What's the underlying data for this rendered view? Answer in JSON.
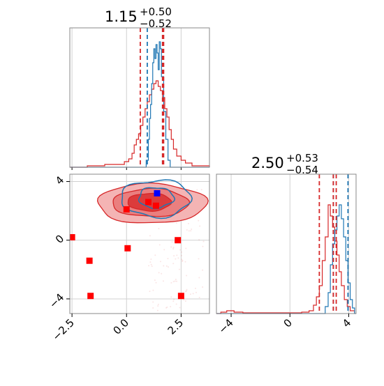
{
  "chart_data": [
    {
      "type": "histogram",
      "panel": "marginal-x",
      "title": {
        "main": "1.15",
        "sup": "+0.50",
        "sub": "−0.52"
      },
      "xlim": [
        -2.6,
        3.8
      ],
      "grid": true,
      "series": [
        {
          "name": "",
          "color": "#1f77b4",
          "quantile_lines": [
            0.95,
            1.65
          ],
          "bins": [
            [
              -2.6,
              0
            ],
            [
              0.8,
              0
            ],
            [
              0.9,
              0.05
            ],
            [
              1.0,
              0.2
            ],
            [
              1.05,
              0.35
            ],
            [
              1.1,
              0.45
            ],
            [
              1.15,
              0.6
            ],
            [
              1.2,
              0.75
            ],
            [
              1.25,
              0.85
            ],
            [
              1.3,
              0.78
            ],
            [
              1.35,
              0.88
            ],
            [
              1.4,
              0.82
            ],
            [
              1.45,
              0.7
            ],
            [
              1.5,
              0.9
            ],
            [
              1.55,
              0.85
            ],
            [
              1.6,
              0.65
            ],
            [
              1.7,
              0.4
            ],
            [
              1.8,
              0.2
            ],
            [
              1.9,
              0.05
            ],
            [
              2.0,
              0
            ],
            [
              3.8,
              0
            ]
          ]
        },
        {
          "name": "",
          "color": "#d62728",
          "quantile_lines": [
            0.63,
            1.65,
            1.7
          ],
          "bins": [
            [
              -2.6,
              0
            ],
            [
              -1.8,
              0.01
            ],
            [
              -1.0,
              0.02
            ],
            [
              -0.5,
              0.02
            ],
            [
              -0.1,
              0.04
            ],
            [
              0.1,
              0.06
            ],
            [
              0.25,
              0.1
            ],
            [
              0.35,
              0.16
            ],
            [
              0.45,
              0.2
            ],
            [
              0.55,
              0.24
            ],
            [
              0.65,
              0.3
            ],
            [
              0.75,
              0.36
            ],
            [
              0.85,
              0.42
            ],
            [
              0.95,
              0.47
            ],
            [
              1.05,
              0.52
            ],
            [
              1.15,
              0.56
            ],
            [
              1.25,
              0.6
            ],
            [
              1.35,
              0.62
            ],
            [
              1.45,
              0.58
            ],
            [
              1.55,
              0.55
            ],
            [
              1.65,
              0.5
            ],
            [
              1.75,
              0.42
            ],
            [
              1.85,
              0.36
            ],
            [
              1.95,
              0.27
            ],
            [
              2.05,
              0.2
            ],
            [
              2.15,
              0.13
            ],
            [
              2.3,
              0.08
            ],
            [
              2.5,
              0.05
            ],
            [
              2.7,
              0.03
            ],
            [
              3.0,
              0.01
            ],
            [
              3.8,
              0
            ]
          ]
        }
      ]
    },
    {
      "type": "scatter",
      "panel": "joint",
      "xlim": [
        -2.6,
        3.8
      ],
      "ylim": [
        -5.0,
        4.5
      ],
      "x_ticks": [
        -2.5,
        0.0,
        2.5
      ],
      "x_tick_labels": [
        "−2.5",
        "0.0",
        "2.5"
      ],
      "y_ticks": [
        -4,
        0,
        4
      ],
      "y_tick_labels": [
        "−4",
        "0",
        "4"
      ],
      "grid": true,
      "red_contours": [
        {
          "level": "outer",
          "cx": 1.15,
          "cy": 2.5,
          "rx": 2.5,
          "ry": 1.35
        },
        {
          "level": "middle",
          "cx": 1.1,
          "cy": 2.55,
          "rx": 1.75,
          "ry": 0.95
        },
        {
          "level": "inner",
          "cx": 1.05,
          "cy": 2.6,
          "rx": 1.0,
          "ry": 0.6
        }
      ],
      "blue_contours": [
        {
          "level": "outer",
          "cx": 1.35,
          "cy": 2.85,
          "rx": 1.6,
          "ry": 1.25
        },
        {
          "level": "inner",
          "cx": 1.35,
          "cy": 2.9,
          "rx": 0.8,
          "ry": 0.7
        }
      ],
      "red_points": [
        [
          -2.5,
          0.2
        ],
        [
          -1.7,
          -1.4
        ],
        [
          -1.65,
          -3.8
        ],
        [
          0.0,
          2.1
        ],
        [
          0.05,
          -0.55
        ],
        [
          1.0,
          2.6
        ],
        [
          1.35,
          2.35
        ],
        [
          2.35,
          0.0
        ],
        [
          2.5,
          -3.8
        ]
      ],
      "blue_points": [
        [
          1.4,
          3.2
        ]
      ]
    },
    {
      "type": "histogram",
      "panel": "marginal-y",
      "title": {
        "main": "2.50",
        "sup": "+0.53",
        "sub": "−0.54"
      },
      "xlim": [
        -5.0,
        4.5
      ],
      "x_ticks": [
        -4,
        0,
        4
      ],
      "x_tick_labels": [
        "−4",
        "0",
        "4"
      ],
      "grid": true,
      "series": [
        {
          "name": "",
          "color": "#1f77b4",
          "quantile_lines": [
            2.95,
            3.95
          ],
          "bins": [
            [
              -5,
              0
            ],
            [
              2.2,
              0
            ],
            [
              2.4,
              0.05
            ],
            [
              2.6,
              0.15
            ],
            [
              2.75,
              0.35
            ],
            [
              2.9,
              0.5
            ],
            [
              3.05,
              0.6
            ],
            [
              3.2,
              0.7
            ],
            [
              3.35,
              0.78
            ],
            [
              3.5,
              0.68
            ],
            [
              3.65,
              0.55
            ],
            [
              3.8,
              0.38
            ],
            [
              3.95,
              0.22
            ],
            [
              4.1,
              0.1
            ],
            [
              4.25,
              0.04
            ],
            [
              4.4,
              0
            ],
            [
              4.5,
              0
            ]
          ]
        },
        {
          "name": "",
          "color": "#d62728",
          "quantile_lines": [
            2.0,
            2.95,
            3.15
          ],
          "bins": [
            [
              -5,
              0
            ],
            [
              -4.7,
              0.01
            ],
            [
              -4.3,
              0.02
            ],
            [
              -3.8,
              0.01
            ],
            [
              -3.2,
              0.005
            ],
            [
              0.8,
              0.01
            ],
            [
              1.3,
              0.02
            ],
            [
              1.6,
              0.06
            ],
            [
              1.8,
              0.12
            ],
            [
              2.0,
              0.2
            ],
            [
              2.2,
              0.38
            ],
            [
              2.4,
              0.55
            ],
            [
              2.6,
              0.78
            ],
            [
              2.75,
              0.7
            ],
            [
              2.9,
              0.62
            ],
            [
              3.05,
              0.52
            ],
            [
              3.2,
              0.42
            ],
            [
              3.35,
              0.3
            ],
            [
              3.5,
              0.2
            ],
            [
              3.7,
              0.1
            ],
            [
              3.9,
              0.05
            ],
            [
              4.1,
              0.02
            ],
            [
              4.4,
              0
            ]
          ]
        }
      ]
    }
  ]
}
